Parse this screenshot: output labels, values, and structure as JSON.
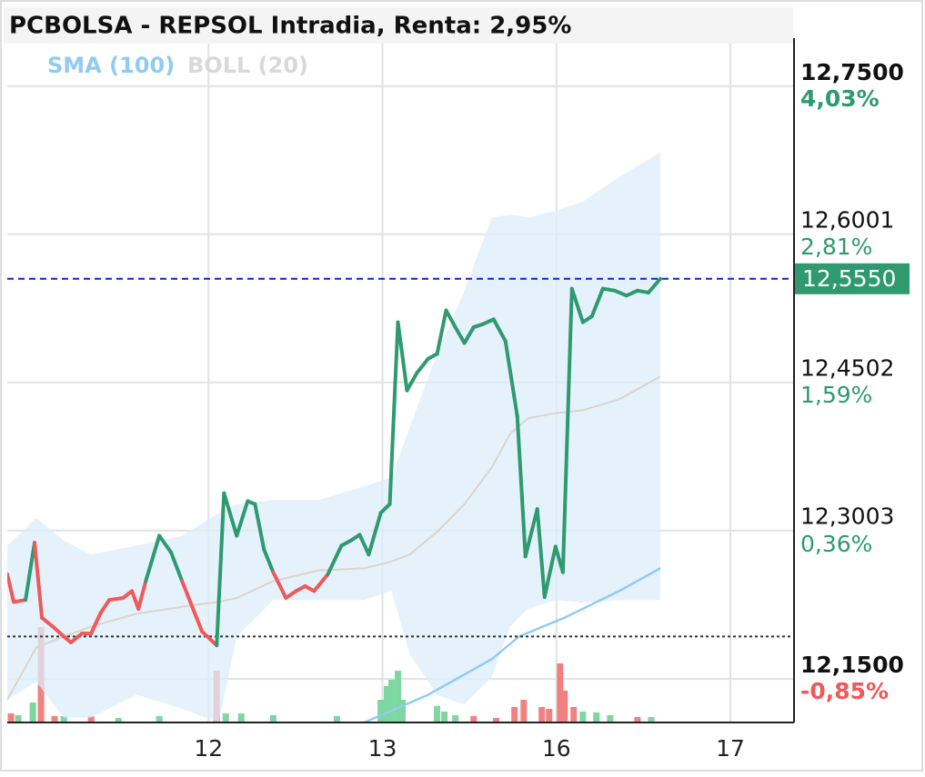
{
  "chart_data": {
    "type": "line",
    "title": "PCBOLSA - REPSOL Intradia, Renta: 2,95%",
    "grid": true,
    "xlim": [
      -0.157,
      4.366
    ],
    "xticks": [
      {
        "value": 1,
        "label": "12"
      },
      {
        "value": 2,
        "label": "13"
      },
      {
        "value": 3,
        "label": "16"
      },
      {
        "value": 4,
        "label": "17"
      }
    ],
    "ylim": [
      12.106,
      12.793
    ],
    "yticks": [
      {
        "value": 12.75,
        "label": "12,7500"
      },
      {
        "value": 12.6001,
        "label": "12,6001"
      },
      {
        "value": 12.4502,
        "label": "12,4502"
      },
      {
        "value": 12.3003,
        "label": "12,3003"
      },
      {
        "value": 12.15,
        "label": "12,1500"
      }
    ],
    "y2lim": [
      -1.21,
      4.38
    ],
    "y2ticks": [
      {
        "value": 4.03,
        "label": "4,03%"
      },
      {
        "value": 2.81,
        "label": "2,81%"
      },
      {
        "value": 1.59,
        "label": "1,59%"
      },
      {
        "value": 0.36,
        "label": "0,36%"
      },
      {
        "value": -0.85,
        "label": "-0,85%"
      }
    ],
    "up_color": "#2e9a6e",
    "down_color": "#f0585a",
    "price": {
      "x": [
        -0.157,
        -0.12,
        -0.052,
        0,
        0.042,
        0.105,
        0.168,
        0.209,
        0.272,
        0.325,
        0.377,
        0.429,
        0.508,
        0.56,
        0.597,
        0.639,
        0.717,
        0.785,
        0.848,
        0.911,
        0.963,
        1.047,
        1.089,
        1.162,
        1.225,
        1.267,
        1.319,
        1.372,
        1.445,
        1.503,
        1.555,
        1.607,
        1.686,
        1.764,
        1.817,
        1.869,
        1.921,
        1.99,
        2.042,
        2.089,
        2.141,
        2.199,
        2.262,
        2.314,
        2.366,
        2.419,
        2.471,
        2.524,
        2.576,
        2.639,
        2.707,
        2.775,
        2.822,
        2.89,
        2.932,
        2.995,
        3.037,
        3.089,
        3.152,
        3.204,
        3.267,
        3.335,
        3.403,
        3.466,
        3.529,
        3.597
      ],
      "values": [
        12.256,
        12.228,
        12.23,
        12.288,
        12.212,
        12.203,
        12.193,
        12.187,
        12.196,
        12.196,
        12.216,
        12.23,
        12.232,
        12.239,
        12.221,
        12.249,
        12.295,
        12.278,
        12.249,
        12.221,
        12.198,
        12.184,
        12.338,
        12.295,
        12.33,
        12.327,
        12.281,
        12.258,
        12.232,
        12.239,
        12.244,
        12.239,
        12.256,
        12.285,
        12.29,
        12.296,
        12.276,
        12.318,
        12.327,
        12.511,
        12.442,
        12.46,
        12.474,
        12.479,
        12.523,
        12.506,
        12.49,
        12.506,
        12.509,
        12.514,
        12.492,
        12.416,
        12.274,
        12.322,
        12.233,
        12.284,
        12.258,
        12.545,
        12.511,
        12.517,
        12.545,
        12.543,
        12.538,
        12.543,
        12.541,
        12.555
      ]
    },
    "indicators": [
      {
        "name": "SMA (100)",
        "color": "#92cbf2",
        "x": [
          1.895,
          2.262,
          2.628,
          2.785,
          3.047,
          3.361,
          3.597
        ],
        "values": [
          12.106,
          12.134,
          12.17,
          12.193,
          12.212,
          12.239,
          12.262
        ]
      },
      {
        "name": "BOLL (20)",
        "color": "#d9d9d9",
        "band_color": "#dcedfb",
        "middle_color": "#dcd4cc",
        "x": [
          -0.157,
          0.01,
          0.168,
          0.325,
          0.586,
          0.848,
          1.058,
          1.162,
          1.372,
          1.634,
          1.895,
          2.052,
          2.157,
          2.314,
          2.471,
          2.628,
          2.733,
          2.838,
          2.995,
          3.152,
          3.361,
          3.597
        ],
        "upper": [
          12.285,
          12.313,
          12.29,
          12.276,
          12.285,
          12.295,
          12.318,
          12.327,
          12.331,
          12.331,
          12.345,
          12.354,
          12.405,
          12.479,
          12.543,
          12.617,
          12.62,
          12.617,
          12.624,
          12.633,
          12.658,
          12.683
        ],
        "lower": [
          12.129,
          12.147,
          12.111,
          12.111,
          12.134,
          12.12,
          12.106,
          12.193,
          12.23,
          12.23,
          12.23,
          12.239,
          12.175,
          12.134,
          12.124,
          12.152,
          12.203,
          12.221,
          12.23,
          12.227,
          12.23,
          12.23
        ],
        "middle": [
          12.129,
          12.182,
          12.193,
          12.203,
          12.216,
          12.223,
          12.228,
          12.232,
          12.249,
          12.26,
          12.262,
          12.269,
          12.276,
          12.299,
          12.327,
          12.364,
          12.398,
          12.414,
          12.419,
          12.422,
          12.433,
          12.456
        ]
      }
    ],
    "last": {
      "value": 12.555,
      "label": "12,5550",
      "color": "#2e9a6e",
      "line_color": "#1a1ae0"
    },
    "prev_close": 12.193,
    "volume": {
      "ylim": [
        0,
        140
      ],
      "x": [
        -0.136,
        -0.094,
        -0.01,
        0.037,
        0.115,
        0.168,
        0.325,
        0.482,
        0.717,
        1.047,
        1.099,
        1.188,
        1.372,
        1.738,
        1.99,
        2.026,
        2.052,
        2.089,
        2.115,
        2.314,
        2.356,
        2.419,
        2.524,
        2.654,
        2.759,
        2.812,
        2.916,
        2.958,
        3.021,
        3.047,
        3.099,
        3.152,
        3.23,
        3.309,
        3.466,
        3.545
      ],
      "values": [
        10,
        8,
        22,
        105,
        7,
        7,
        7,
        5,
        7,
        57,
        10,
        10,
        8,
        7,
        25,
        40,
        47,
        57,
        25,
        18,
        12,
        8,
        7,
        5,
        17,
        25,
        17,
        15,
        65,
        35,
        17,
        12,
        11,
        8,
        6,
        6
      ],
      "colors": [
        "#f28080",
        "#7ed6a0",
        "#7ed6a0",
        "#f28080",
        "#f28080",
        "#7ed6a0",
        "#f28080",
        "#7ed6a0",
        "#7ed6a0",
        "#f28080",
        "#7ed6a0",
        "#7ed6a0",
        "#7ed6a0",
        "#7ed6a0",
        "#7ed6a0",
        "#7ed6a0",
        "#7ed6a0",
        "#7ed6a0",
        "#7ed6a0",
        "#7ed6a0",
        "#7ed6a0",
        "#7ed6a0",
        "#f28080",
        "#f28080",
        "#f28080",
        "#f28080",
        "#f28080",
        "#f28080",
        "#f28080",
        "#f28080",
        "#f28080",
        "#7ed6a0",
        "#7ed6a0",
        "#7ed6a0",
        "#f28080",
        "#7ed6a0"
      ]
    }
  }
}
